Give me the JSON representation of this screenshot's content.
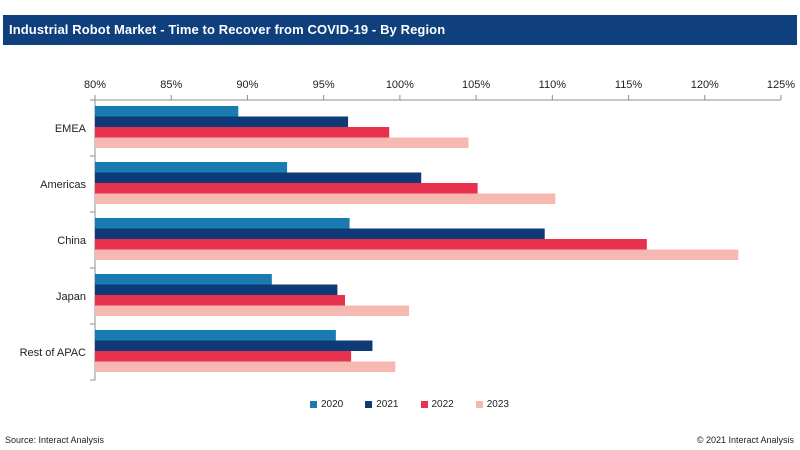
{
  "title": "Industrial Robot Market - Time to Recover from COVID-19 - By Region",
  "footer": {
    "source": "Source: Interact Analysis",
    "copyright": "© 2021 Interact Analysis"
  },
  "chart_data": {
    "type": "bar",
    "orientation": "horizontal",
    "title": "Industrial Robot Market - Time to Recover from COVID-19 - By Region",
    "xlabel": "",
    "ylabel": "",
    "xlim": [
      80,
      125
    ],
    "x_ticks": [
      "80%",
      "85%",
      "90%",
      "95%",
      "100%",
      "105%",
      "110%",
      "115%",
      "120%",
      "125%"
    ],
    "x_axis_position": "top",
    "grid": false,
    "legend_position": "bottom",
    "categories": [
      "EMEA",
      "Americas",
      "China",
      "Japan",
      "Rest of APAC"
    ],
    "series": [
      {
        "name": "2020",
        "color": "#1a7bb0",
        "values": [
          89.4,
          92.6,
          96.7,
          91.6,
          95.8
        ]
      },
      {
        "name": "2021",
        "color": "#0f3a78",
        "values": [
          96.6,
          101.4,
          109.5,
          95.9,
          98.2
        ]
      },
      {
        "name": "2022",
        "color": "#e8324d",
        "values": [
          99.3,
          105.1,
          116.2,
          96.4,
          96.8
        ]
      },
      {
        "name": "2023",
        "color": "#f6b9b2",
        "values": [
          104.5,
          110.2,
          122.2,
          100.6,
          99.7
        ]
      }
    ]
  }
}
